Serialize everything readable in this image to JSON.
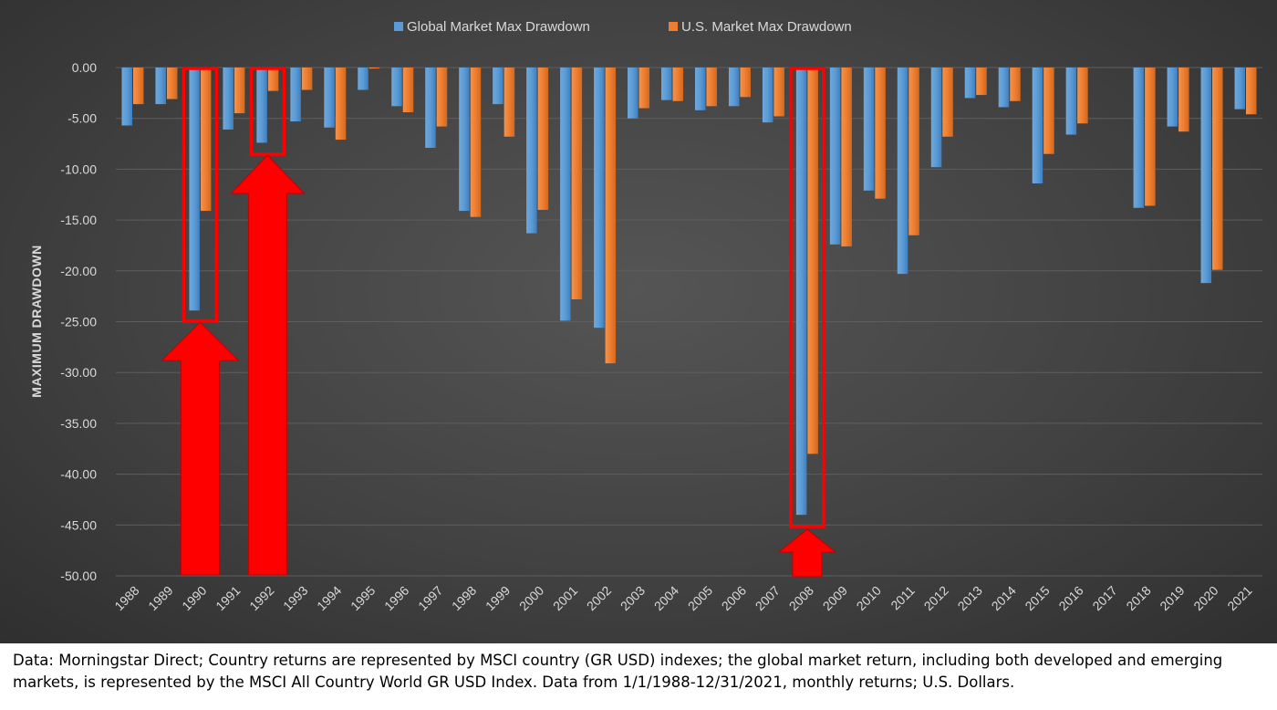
{
  "chart_data": {
    "type": "bar",
    "title": "",
    "xlabel": "",
    "ylabel": "MAXIMUM DRAWDOWN",
    "ylim": [
      -50,
      0
    ],
    "yticks": [
      "0.00",
      "-5.00",
      "-10.00",
      "-15.00",
      "-20.00",
      "-25.00",
      "-30.00",
      "-35.00",
      "-40.00",
      "-45.00",
      "-50.00"
    ],
    "categories": [
      "1988",
      "1989",
      "1990",
      "1991",
      "1992",
      "1993",
      "1994",
      "1995",
      "1996",
      "1997",
      "1998",
      "1999",
      "2000",
      "2001",
      "2002",
      "2003",
      "2004",
      "2005",
      "2006",
      "2007",
      "2008",
      "2009",
      "2010",
      "2011",
      "2012",
      "2013",
      "2014",
      "2015",
      "2016",
      "2017",
      "2018",
      "2019",
      "2020",
      "2021"
    ],
    "series": [
      {
        "name": "Global Market Max Drawdown",
        "color": "#5b9bd5",
        "values": [
          -5.7,
          -3.6,
          -23.9,
          -6.1,
          -7.4,
          -5.3,
          -5.9,
          -2.2,
          -3.8,
          -7.9,
          -14.1,
          -3.6,
          -16.3,
          -24.9,
          -25.6,
          -5.0,
          -3.2,
          -4.2,
          -3.8,
          -5.4,
          -44.0,
          -17.4,
          -12.1,
          -20.3,
          -9.8,
          -3.0,
          -3.9,
          -11.4,
          -6.6,
          0.0,
          -13.8,
          -5.8,
          -21.2,
          -4.1
        ]
      },
      {
        "name": "U.S. Market Max Drawdown",
        "color": "#ed7d31",
        "values": [
          -3.6,
          -3.1,
          -14.1,
          -4.5,
          -2.3,
          -2.2,
          -7.1,
          -0.1,
          -4.4,
          -5.8,
          -14.7,
          -6.8,
          -14.0,
          -22.8,
          -29.1,
          -4.0,
          -3.3,
          -3.8,
          -2.9,
          -4.8,
          -38.0,
          -17.6,
          -12.9,
          -16.5,
          -6.8,
          -2.7,
          -3.3,
          -8.5,
          -5.5,
          0.0,
          -13.6,
          -6.3,
          -19.9,
          -4.6
        ]
      }
    ],
    "legend": "top",
    "grid": true,
    "highlights": [
      "1990",
      "1992",
      "2008"
    ]
  },
  "caption": {
    "text": "Data: Morningstar Direct; Country returns are represented by MSCI country (GR USD) indexes; the global market return, including both developed and emerging markets, is represented by the MSCI All Country World GR USD Index. Data from 1/1/1988-12/31/2021, monthly returns; U.S. Dollars."
  },
  "colors": {
    "highlight": "#ff0000",
    "gridline": "#5e5e5e",
    "text": "#d9d9d9"
  }
}
